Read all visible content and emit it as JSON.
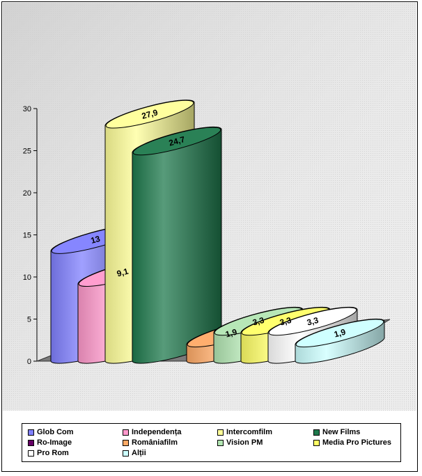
{
  "chart_data": {
    "type": "bar",
    "subtype": "3d-cylinder",
    "categories": [
      "Glob Com",
      "Independența",
      "Intercomfilm",
      "New Films",
      "Ro-Image",
      "Româniafilm",
      "Vision PM",
      "Media Pro Pictures",
      "Pro Rom",
      "Alții"
    ],
    "values": [
      13,
      9.1,
      27.9,
      24.7,
      null,
      1.9,
      3.3,
      3.3,
      3.3,
      1.9
    ],
    "data_labels": [
      "13",
      "9,1",
      "27,9",
      "24,7",
      "",
      "1,9",
      "3,3",
      "3,3",
      "3,3",
      "1,9"
    ],
    "colors": [
      "#8080ff",
      "#ff99cc",
      "#ffff99",
      "#1f7a4d",
      "#660066",
      "#ffaa66",
      "#b3e6b3",
      "#ffff66",
      "#ffffff",
      "#ccffff"
    ],
    "yticks": [
      "0",
      "5",
      "10",
      "15",
      "20",
      "25",
      "30"
    ],
    "ylim": [
      0,
      30
    ],
    "grid": false,
    "legend_position": "bottom"
  }
}
